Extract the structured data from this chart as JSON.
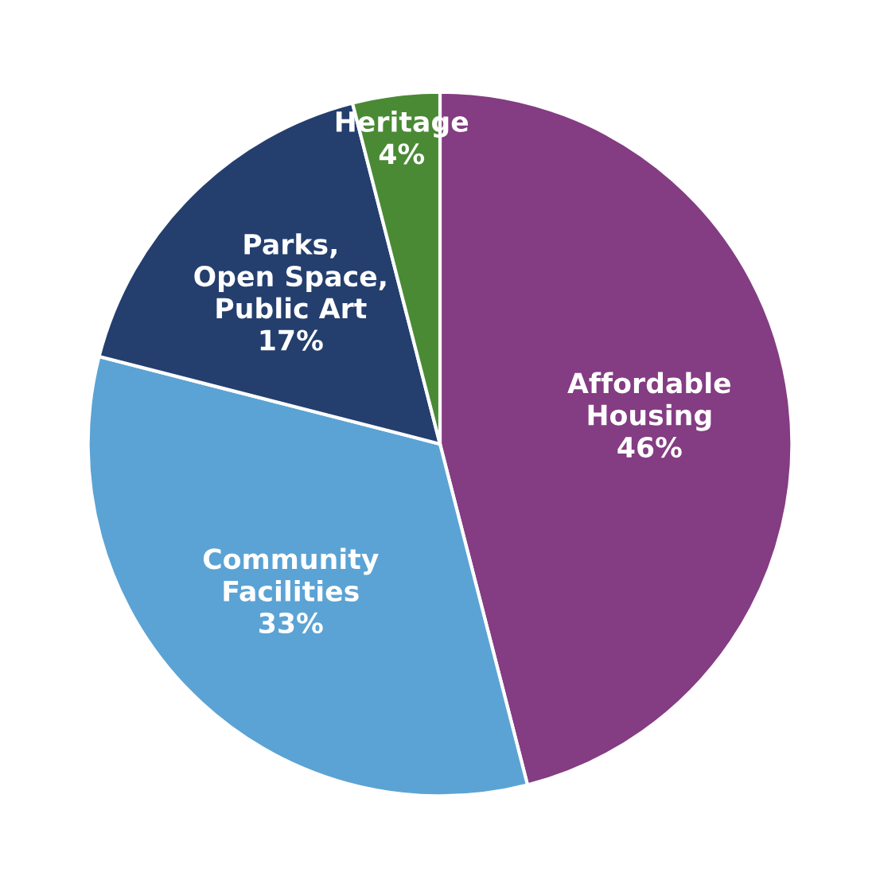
{
  "chart_data": {
    "type": "pie",
    "categories": [
      "Affordable\nHousing",
      "Community\nFacilities",
      "Parks,\nOpen Space,\nPublic Art",
      "Heritage"
    ],
    "values": [
      46,
      33,
      17,
      4
    ],
    "colors": [
      "#843c83",
      "#5ba3d4",
      "#243f6e",
      "#4a8a35"
    ],
    "value_labels": [
      "46%",
      "33%",
      "17%",
      "4%"
    ]
  }
}
